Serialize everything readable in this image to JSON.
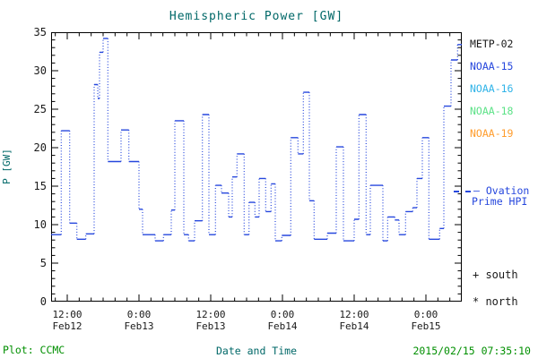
{
  "title": "Hemispheric Power [GW]",
  "colors": {
    "title_text": "#006868",
    "axis_text": "#1a1a1a",
    "footer_green": "#008f00",
    "line_blue": "#2647dd",
    "border": "#000000"
  },
  "legend": {
    "satellites": [
      {
        "label": "METP-02",
        "color": "#1a1a1a"
      },
      {
        "label": "NOAA-15",
        "color": "#2647dd"
      },
      {
        "label": "NOAA-16",
        "color": "#2fb3e8"
      },
      {
        "label": "NOAA-18",
        "color": "#5ce287"
      },
      {
        "label": "NOAA-19",
        "color": "#ff9d2e"
      }
    ],
    "ovation": {
      "line1": "Ovation",
      "line2": "Prime HPI",
      "color": "#2647dd"
    },
    "south_marker": "+ south",
    "north_marker": "* north"
  },
  "footer": {
    "plot_credit": "Plot: CCMC",
    "timestamp": "2015/02/15 07:35:10"
  },
  "chart_data": {
    "type": "line",
    "title": "Hemispheric Power [GW]",
    "xlabel": "Date and Time",
    "ylabel": "P [GW]",
    "ylim": [
      0,
      35
    ],
    "y_major_ticks": [
      0,
      5,
      10,
      15,
      20,
      25,
      30,
      35
    ],
    "y_minor_step": 1,
    "x_hours_range": [
      9.3,
      78
    ],
    "x_minor_step_hours": 2,
    "x_ticks": [
      {
        "hour": 12,
        "time": "12:00",
        "date": "Feb12"
      },
      {
        "hour": 24,
        "time": "0:00",
        "date": "Feb13"
      },
      {
        "hour": 36,
        "time": "12:00",
        "date": "Feb13"
      },
      {
        "hour": 48,
        "time": "0:00",
        "date": "Feb14"
      },
      {
        "hour": 60,
        "time": "12:00",
        "date": "Feb14"
      },
      {
        "hour": 72,
        "time": "0:00",
        "date": "Feb15"
      }
    ],
    "grid": false,
    "legend_position": "right-outside",
    "line_style": "stepped; horizontal segments solid, vertical transitions dotted",
    "series": [
      {
        "name": "Ovation Prime HPI",
        "color": "#2647dd",
        "points_hours_gw": [
          [
            9.3,
            8.7
          ],
          [
            11.0,
            22.2
          ],
          [
            12.4,
            10.2
          ],
          [
            13.6,
            8.1
          ],
          [
            15.1,
            8.8
          ],
          [
            16.5,
            28.2
          ],
          [
            17.1,
            26.4
          ],
          [
            17.4,
            32.4
          ],
          [
            18.0,
            34.2
          ],
          [
            18.8,
            18.2
          ],
          [
            21.0,
            22.3
          ],
          [
            22.3,
            18.2
          ],
          [
            24.0,
            12.0
          ],
          [
            24.6,
            8.7
          ],
          [
            26.7,
            7.9
          ],
          [
            28.1,
            8.7
          ],
          [
            29.4,
            11.9
          ],
          [
            30.0,
            23.5
          ],
          [
            31.5,
            8.7
          ],
          [
            32.3,
            7.9
          ],
          [
            33.3,
            10.5
          ],
          [
            34.6,
            24.3
          ],
          [
            35.7,
            8.7
          ],
          [
            36.8,
            15.1
          ],
          [
            37.8,
            14.1
          ],
          [
            39.0,
            11.0
          ],
          [
            39.6,
            16.2
          ],
          [
            40.4,
            19.2
          ],
          [
            41.6,
            8.7
          ],
          [
            42.4,
            12.9
          ],
          [
            43.4,
            11.0
          ],
          [
            44.1,
            16.0
          ],
          [
            45.2,
            11.7
          ],
          [
            46.1,
            15.3
          ],
          [
            46.8,
            7.9
          ],
          [
            47.9,
            8.6
          ],
          [
            49.4,
            21.3
          ],
          [
            50.6,
            19.2
          ],
          [
            51.5,
            27.2
          ],
          [
            52.5,
            13.1
          ],
          [
            53.3,
            8.1
          ],
          [
            55.5,
            8.9
          ],
          [
            57.0,
            20.1
          ],
          [
            58.2,
            7.9
          ],
          [
            60.0,
            10.7
          ],
          [
            60.8,
            24.3
          ],
          [
            62.0,
            8.7
          ],
          [
            62.7,
            15.1
          ],
          [
            64.8,
            7.9
          ],
          [
            65.6,
            11.0
          ],
          [
            66.8,
            10.6
          ],
          [
            67.5,
            8.7
          ],
          [
            68.6,
            11.7
          ],
          [
            69.8,
            12.2
          ],
          [
            70.5,
            16.0
          ],
          [
            71.4,
            21.3
          ],
          [
            72.5,
            8.1
          ],
          [
            74.3,
            9.5
          ],
          [
            75.0,
            25.4
          ],
          [
            76.2,
            31.4
          ],
          [
            77.3,
            33.4
          ]
        ]
      }
    ]
  }
}
